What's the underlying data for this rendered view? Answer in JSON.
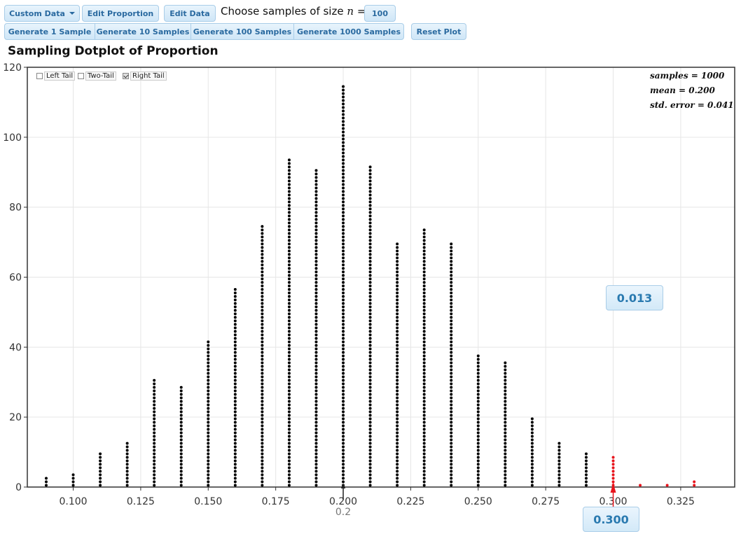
{
  "toolbar": {
    "custom_data_label": "Custom Data",
    "edit_proportion_label": "Edit Proportion",
    "edit_data_label": "Edit Data",
    "choose_label_prefix": "Choose samples of size",
    "choose_label_var": "n",
    "choose_label_eq": "=",
    "sample_size_value": "100",
    "generate_1_label": "Generate 1 Sample",
    "generate_10_label": "Generate 10 Samples",
    "generate_100_label": "Generate 100 Samples",
    "generate_1000_label": "Generate 1000 Samples",
    "reset_label": "Reset Plot"
  },
  "plot": {
    "title": "Sampling Dotplot of Proportion",
    "tails": {
      "left": {
        "label": "Left Tail",
        "checked": false
      },
      "two": {
        "label": "Two-Tail",
        "checked": false
      },
      "right": {
        "label": "Right Tail",
        "checked": true
      }
    },
    "stats": {
      "samples": "samples = 1000",
      "mean": "mean = 0.200",
      "std_error": "std. error = 0.041"
    },
    "tail_proportion": "0.013",
    "cutoff_value": "0.300",
    "mean_marker_label": "0.2"
  },
  "chart_data": {
    "type": "scatter",
    "subtype": "dotplot",
    "xlim": [
      0.083,
      0.345
    ],
    "ylim": [
      0,
      120
    ],
    "x_ticks": [
      "0.100",
      "0.125",
      "0.150",
      "0.175",
      "0.200",
      "0.225",
      "0.250",
      "0.275",
      "0.300",
      "0.325"
    ],
    "y_ticks": [
      "0",
      "20",
      "40",
      "60",
      "80",
      "100",
      "120"
    ],
    "grid": true,
    "default_color": "#000000",
    "tail_color": "#e8141c",
    "cutoff": 0.3,
    "points": [
      {
        "x": 0.09,
        "count": 3
      },
      {
        "x": 0.1,
        "count": 4
      },
      {
        "x": 0.11,
        "count": 10
      },
      {
        "x": 0.12,
        "count": 13
      },
      {
        "x": 0.13,
        "count": 31
      },
      {
        "x": 0.14,
        "count": 29
      },
      {
        "x": 0.15,
        "count": 42
      },
      {
        "x": 0.16,
        "count": 57
      },
      {
        "x": 0.17,
        "count": 75
      },
      {
        "x": 0.18,
        "count": 94
      },
      {
        "x": 0.19,
        "count": 91
      },
      {
        "x": 0.2,
        "count": 115
      },
      {
        "x": 0.21,
        "count": 92
      },
      {
        "x": 0.22,
        "count": 70
      },
      {
        "x": 0.23,
        "count": 74
      },
      {
        "x": 0.24,
        "count": 70
      },
      {
        "x": 0.25,
        "count": 38
      },
      {
        "x": 0.26,
        "count": 36
      },
      {
        "x": 0.27,
        "count": 20
      },
      {
        "x": 0.28,
        "count": 13
      },
      {
        "x": 0.29,
        "count": 10
      },
      {
        "x": 0.3,
        "count": 9
      },
      {
        "x": 0.31,
        "count": 1
      },
      {
        "x": 0.32,
        "count": 1
      },
      {
        "x": 0.33,
        "count": 2
      }
    ]
  }
}
